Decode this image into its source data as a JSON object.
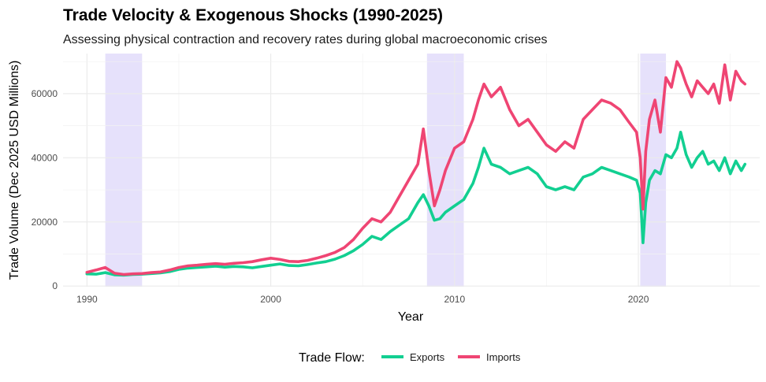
{
  "chart_data": {
    "type": "line",
    "title": "Trade Velocity & Exogenous Shocks (1990-2025)",
    "subtitle": "Assessing physical contraction and recovery rates during global macroeconomic crises",
    "xlabel": "Year",
    "ylabel": "Trade Volume (Dec 2025 USD Millions)",
    "xlim": [
      1988.7,
      2026.6
    ],
    "ylim": [
      -200,
      72500
    ],
    "x_ticks": [
      1990,
      2000,
      2010,
      2020
    ],
    "x_tick_labels": [
      "1990",
      "2000",
      "2010",
      "2020"
    ],
    "y_ticks": [
      0,
      20000,
      40000,
      60000
    ],
    "y_tick_labels": [
      "0",
      "20000",
      "40000",
      "60000"
    ],
    "grid": true,
    "legend": {
      "title": "Trade Flow:",
      "position": "bottom",
      "items": [
        "Exports",
        "Imports"
      ]
    },
    "shaded_periods": [
      {
        "start": 1991.0,
        "end": 1993.0
      },
      {
        "start": 2008.5,
        "end": 2010.5
      },
      {
        "start": 2020.1,
        "end": 2021.5
      }
    ],
    "shade_color": "#e6e1fb",
    "series": [
      {
        "name": "Exports",
        "color": "#12cf91",
        "x": [
          1990.0,
          1990.5,
          1991.0,
          1991.5,
          1992.0,
          1992.5,
          1993.0,
          1993.5,
          1994.0,
          1994.5,
          1995.0,
          1995.5,
          1996.0,
          1996.5,
          1997.0,
          1997.5,
          1998.0,
          1998.5,
          1999.0,
          1999.5,
          2000.0,
          2000.5,
          2001.0,
          2001.5,
          2002.0,
          2002.5,
          2003.0,
          2003.5,
          2004.0,
          2004.5,
          2005.0,
          2005.5,
          2006.0,
          2006.5,
          2007.0,
          2007.5,
          2008.0,
          2008.3,
          2008.6,
          2008.9,
          2009.2,
          2009.5,
          2010.0,
          2010.5,
          2011.0,
          2011.3,
          2011.6,
          2012.0,
          2012.5,
          2013.0,
          2013.5,
          2014.0,
          2014.5,
          2015.0,
          2015.5,
          2016.0,
          2016.5,
          2017.0,
          2017.5,
          2018.0,
          2018.5,
          2019.0,
          2019.5,
          2019.9,
          2020.1,
          2020.25,
          2020.4,
          2020.6,
          2020.9,
          2021.2,
          2021.5,
          2021.8,
          2022.1,
          2022.3,
          2022.6,
          2022.9,
          2023.2,
          2023.5,
          2023.8,
          2024.1,
          2024.4,
          2024.7,
          2025.0,
          2025.3,
          2025.6,
          2025.8
        ],
        "y": [
          3800,
          3700,
          4200,
          3500,
          3400,
          3600,
          3700,
          3900,
          4100,
          4500,
          5200,
          5600,
          5800,
          6000,
          6200,
          5900,
          6100,
          6000,
          5700,
          6100,
          6500,
          6900,
          6400,
          6300,
          6700,
          7200,
          7600,
          8400,
          9500,
          11000,
          13000,
          15500,
          14500,
          17000,
          19000,
          21000,
          26000,
          28500,
          25000,
          20500,
          21000,
          23000,
          25000,
          27000,
          32000,
          37000,
          43000,
          38000,
          37000,
          35000,
          36000,
          37000,
          35000,
          31000,
          30000,
          31000,
          30000,
          34000,
          35000,
          37000,
          36000,
          35000,
          34000,
          33000,
          29000,
          13500,
          26000,
          33000,
          36000,
          35000,
          41000,
          40000,
          43000,
          48000,
          41000,
          37000,
          40000,
          42000,
          38000,
          39000,
          36000,
          40000,
          35000,
          39000,
          36000,
          38000
        ]
      },
      {
        "name": "Imports",
        "color": "#ef4573",
        "x": [
          1990.0,
          1990.5,
          1991.0,
          1991.5,
          1992.0,
          1992.5,
          1993.0,
          1993.5,
          1994.0,
          1994.5,
          1995.0,
          1995.5,
          1996.0,
          1996.5,
          1997.0,
          1997.5,
          1998.0,
          1998.5,
          1999.0,
          1999.5,
          2000.0,
          2000.5,
          2001.0,
          2001.5,
          2002.0,
          2002.5,
          2003.0,
          2003.5,
          2004.0,
          2004.5,
          2005.0,
          2005.5,
          2006.0,
          2006.5,
          2007.0,
          2007.5,
          2008.0,
          2008.3,
          2008.6,
          2008.9,
          2009.2,
          2009.5,
          2010.0,
          2010.5,
          2011.0,
          2011.3,
          2011.6,
          2012.0,
          2012.5,
          2013.0,
          2013.5,
          2014.0,
          2014.5,
          2015.0,
          2015.5,
          2016.0,
          2016.5,
          2017.0,
          2017.5,
          2018.0,
          2018.5,
          2019.0,
          2019.5,
          2019.9,
          2020.1,
          2020.25,
          2020.4,
          2020.6,
          2020.9,
          2021.2,
          2021.5,
          2021.8,
          2022.1,
          2022.3,
          2022.6,
          2022.9,
          2023.2,
          2023.5,
          2023.8,
          2024.1,
          2024.4,
          2024.7,
          2025.0,
          2025.3,
          2025.6,
          2025.8
        ],
        "y": [
          4300,
          5000,
          5800,
          4000,
          3600,
          3800,
          3900,
          4200,
          4400,
          5000,
          5800,
          6300,
          6500,
          6800,
          7000,
          6800,
          7100,
          7300,
          7600,
          8200,
          8700,
          8300,
          7700,
          7600,
          8000,
          8700,
          9500,
          10500,
          12000,
          14500,
          18000,
          21000,
          20000,
          23000,
          28000,
          33000,
          38000,
          49000,
          36000,
          25000,
          30000,
          36000,
          43000,
          45000,
          52000,
          58000,
          63000,
          59000,
          62000,
          55000,
          50000,
          52000,
          48000,
          44000,
          42000,
          45000,
          43000,
          52000,
          55000,
          58000,
          57000,
          55000,
          51000,
          48000,
          40000,
          24000,
          42000,
          52000,
          58000,
          48000,
          65000,
          62000,
          70000,
          68000,
          63000,
          59000,
          64000,
          62000,
          60000,
          63000,
          57000,
          69000,
          58000,
          67000,
          64000,
          63000
        ]
      }
    ]
  }
}
